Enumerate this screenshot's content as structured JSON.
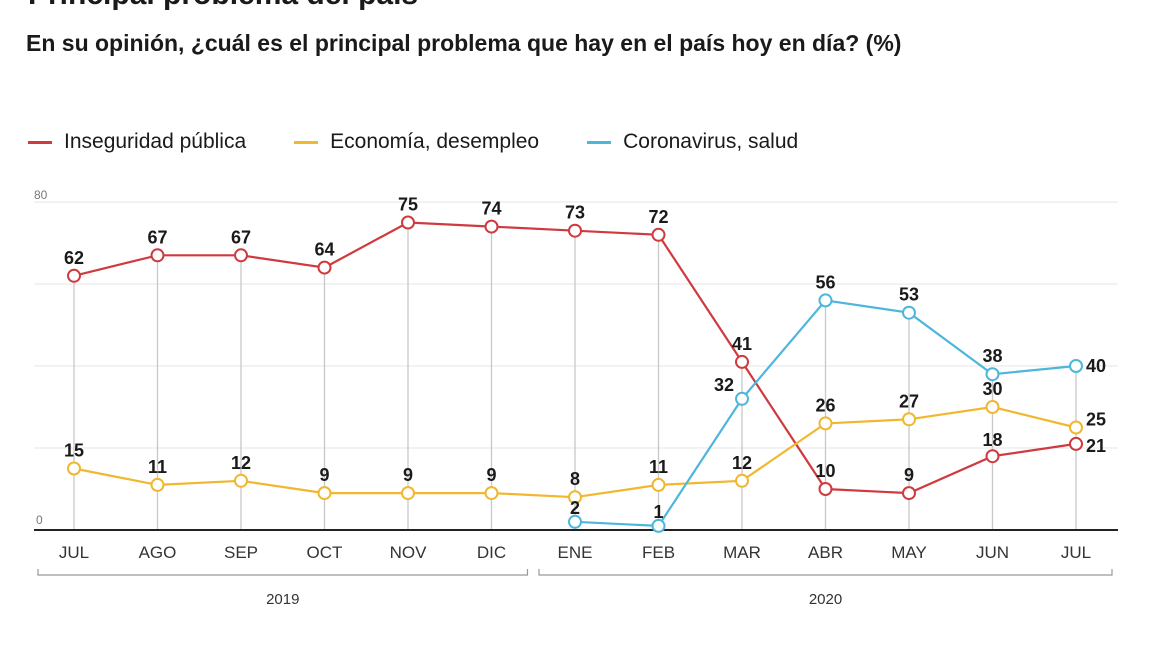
{
  "title": "Principal problema del país",
  "subtitle": "En su opinión, ¿cuál es el principal problema que hay en el país hoy en día? (%)",
  "chart_data": {
    "type": "line",
    "categories": [
      "JUL",
      "AGO",
      "SEP",
      "OCT",
      "NOV",
      "DIC",
      "ENE",
      "FEB",
      "MAR",
      "ABR",
      "MAY",
      "JUN",
      "JUL"
    ],
    "year_groups": [
      {
        "label": "2019",
        "from": 0,
        "to": 5
      },
      {
        "label": "2020",
        "from": 6,
        "to": 12
      }
    ],
    "ylim": [
      0,
      80
    ],
    "yticks_labeled": [
      "0",
      "80"
    ],
    "grid": true,
    "legend_placement": "top-left",
    "series": [
      {
        "name": "Inseguridad pública",
        "color": "#cf3a3f",
        "values": [
          62,
          67,
          67,
          64,
          75,
          74,
          73,
          72,
          41,
          10,
          9,
          18,
          21
        ]
      },
      {
        "name": "Economía, desempleo",
        "color": "#f0b72f",
        "values": [
          15,
          11,
          12,
          9,
          9,
          9,
          8,
          11,
          12,
          26,
          27,
          30,
          25
        ]
      },
      {
        "name": "Coronavirus, salud",
        "color": "#4db6dc",
        "values": [
          null,
          null,
          null,
          null,
          null,
          null,
          2,
          1,
          32,
          56,
          53,
          38,
          40
        ]
      }
    ]
  }
}
